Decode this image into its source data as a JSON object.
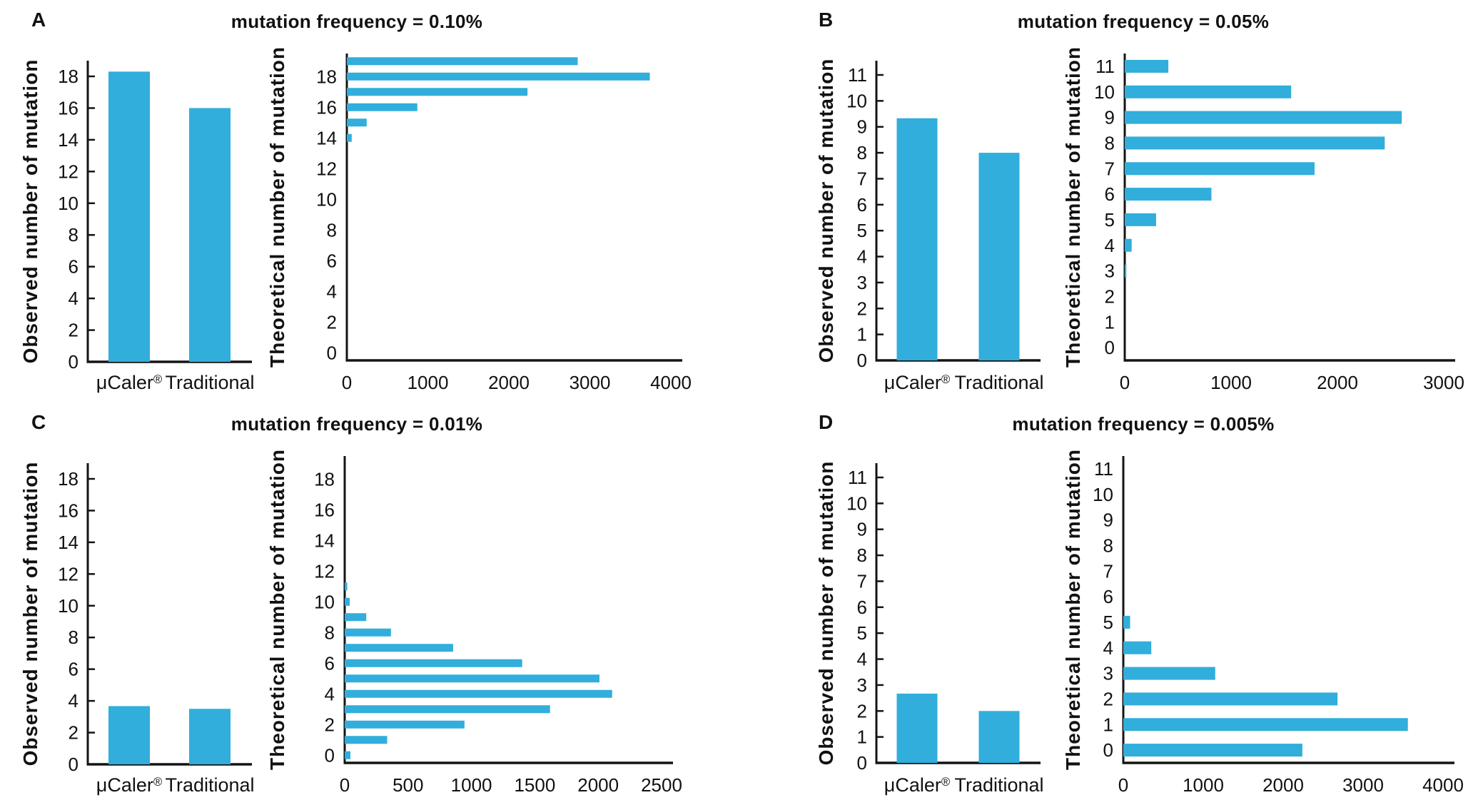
{
  "figure": {
    "bar_color": "#31AEDB",
    "axis_color": "#141414",
    "text_color": "#111111",
    "panels": [
      {
        "letter": "A",
        "title": "mutation frequency = 0.10%",
        "observed_chart": 0,
        "theoretical_chart": 1
      },
      {
        "letter": "B",
        "title": "mutation frequency = 0.05%",
        "observed_chart": 2,
        "theoretical_chart": 3
      },
      {
        "letter": "C",
        "title": "mutation frequency = 0.01%",
        "observed_chart": 4,
        "theoretical_chart": 5
      },
      {
        "letter": "D",
        "title": "mutation frequency = 0.005%",
        "observed_chart": 6,
        "theoretical_chart": 7
      }
    ]
  },
  "chart_data": [
    {
      "panel": "A",
      "role": "observed",
      "type": "bar",
      "orientation": "vertical",
      "title": "mutation frequency = 0.10%",
      "ylabel": "Observed number of mutation",
      "xlabel": "",
      "categories": [
        "μCaler®",
        "Traditional"
      ],
      "values": [
        18.3,
        16
      ],
      "ylim": [
        0,
        19
      ],
      "ytick_max": 18,
      "ytick_step": 2,
      "grid": false,
      "legend": "none"
    },
    {
      "panel": "A",
      "role": "theoretical",
      "type": "bar",
      "orientation": "horizontal",
      "ylabel": "Theoretical number of mutation",
      "xlabel": "",
      "category_range": [
        0,
        19
      ],
      "category_label_step": 2,
      "xlim": [
        0,
        4000
      ],
      "xtick_step": 1000,
      "grid": false,
      "legend": "none",
      "bars": [
        [
          14,
          60
        ],
        [
          15,
          245
        ],
        [
          16,
          870
        ],
        [
          17,
          2230
        ],
        [
          18,
          3740
        ],
        [
          19,
          2850
        ]
      ]
    },
    {
      "panel": "B",
      "role": "observed",
      "type": "bar",
      "orientation": "vertical",
      "title": "mutation frequency = 0.05%",
      "ylabel": "Observed number of mutation",
      "xlabel": "",
      "categories": [
        "μCaler®",
        "Traditional"
      ],
      "values": [
        9.33,
        8
      ],
      "ylim": [
        0,
        11.5
      ],
      "ytick_max": 11,
      "ytick_step": 1,
      "grid": false,
      "legend": "none"
    },
    {
      "panel": "B",
      "role": "theoretical",
      "type": "bar",
      "orientation": "horizontal",
      "ylabel": "Theoretical number of mutation",
      "xlabel": "",
      "category_range": [
        0,
        11
      ],
      "category_label_step": 1,
      "xlim": [
        0,
        3000
      ],
      "xtick_step": 1000,
      "grid": false,
      "legend": "none",
      "bars": [
        [
          3,
          15
        ],
        [
          4,
          65
        ],
        [
          5,
          295
        ],
        [
          6,
          815
        ],
        [
          7,
          1785
        ],
        [
          8,
          2445
        ],
        [
          9,
          2605
        ],
        [
          10,
          1565
        ],
        [
          11,
          410
        ]
      ]
    },
    {
      "panel": "C",
      "role": "observed",
      "type": "bar",
      "orientation": "vertical",
      "title": "mutation frequency = 0.01%",
      "ylabel": "Observed number of mutation",
      "xlabel": "",
      "categories": [
        "μCaler®",
        "Traditional"
      ],
      "values": [
        3.67,
        3.5
      ],
      "ylim": [
        0,
        19
      ],
      "ytick_max": 18,
      "ytick_step": 2,
      "grid": false,
      "legend": "none"
    },
    {
      "panel": "C",
      "role": "theoretical",
      "type": "bar",
      "orientation": "horizontal",
      "ylabel": "Theoretical number of mutation",
      "xlabel": "",
      "category_range": [
        0,
        19
      ],
      "category_label_step": 2,
      "xlim": [
        0,
        2500
      ],
      "xtick_step": 500,
      "grid": false,
      "legend": "none",
      "bars": [
        [
          0,
          45
        ],
        [
          1,
          335
        ],
        [
          2,
          945
        ],
        [
          3,
          1620
        ],
        [
          4,
          2110
        ],
        [
          5,
          2010
        ],
        [
          6,
          1400
        ],
        [
          7,
          855
        ],
        [
          8,
          365
        ],
        [
          9,
          170
        ],
        [
          10,
          40
        ],
        [
          11,
          20
        ]
      ]
    },
    {
      "panel": "D",
      "role": "observed",
      "type": "bar",
      "orientation": "vertical",
      "title": "mutation frequency = 0.005%",
      "ylabel": "Observed number of mutation",
      "xlabel": "",
      "categories": [
        "μCaler®",
        "Traditional"
      ],
      "values": [
        2.67,
        2
      ],
      "ylim": [
        0,
        11.5
      ],
      "ytick_max": 11,
      "ytick_step": 1,
      "grid": false,
      "legend": "none"
    },
    {
      "panel": "D",
      "role": "theoretical",
      "type": "bar",
      "orientation": "horizontal",
      "ylabel": "Theoretical number of mutation",
      "xlabel": "",
      "category_range": [
        0,
        11
      ],
      "category_label_step": 1,
      "xlim": [
        0,
        4000
      ],
      "xtick_step": 1000,
      "grid": false,
      "legend": "none",
      "bars": [
        [
          0,
          2240
        ],
        [
          1,
          3560
        ],
        [
          2,
          2680
        ],
        [
          3,
          1150
        ],
        [
          4,
          350
        ],
        [
          5,
          85
        ]
      ]
    }
  ]
}
